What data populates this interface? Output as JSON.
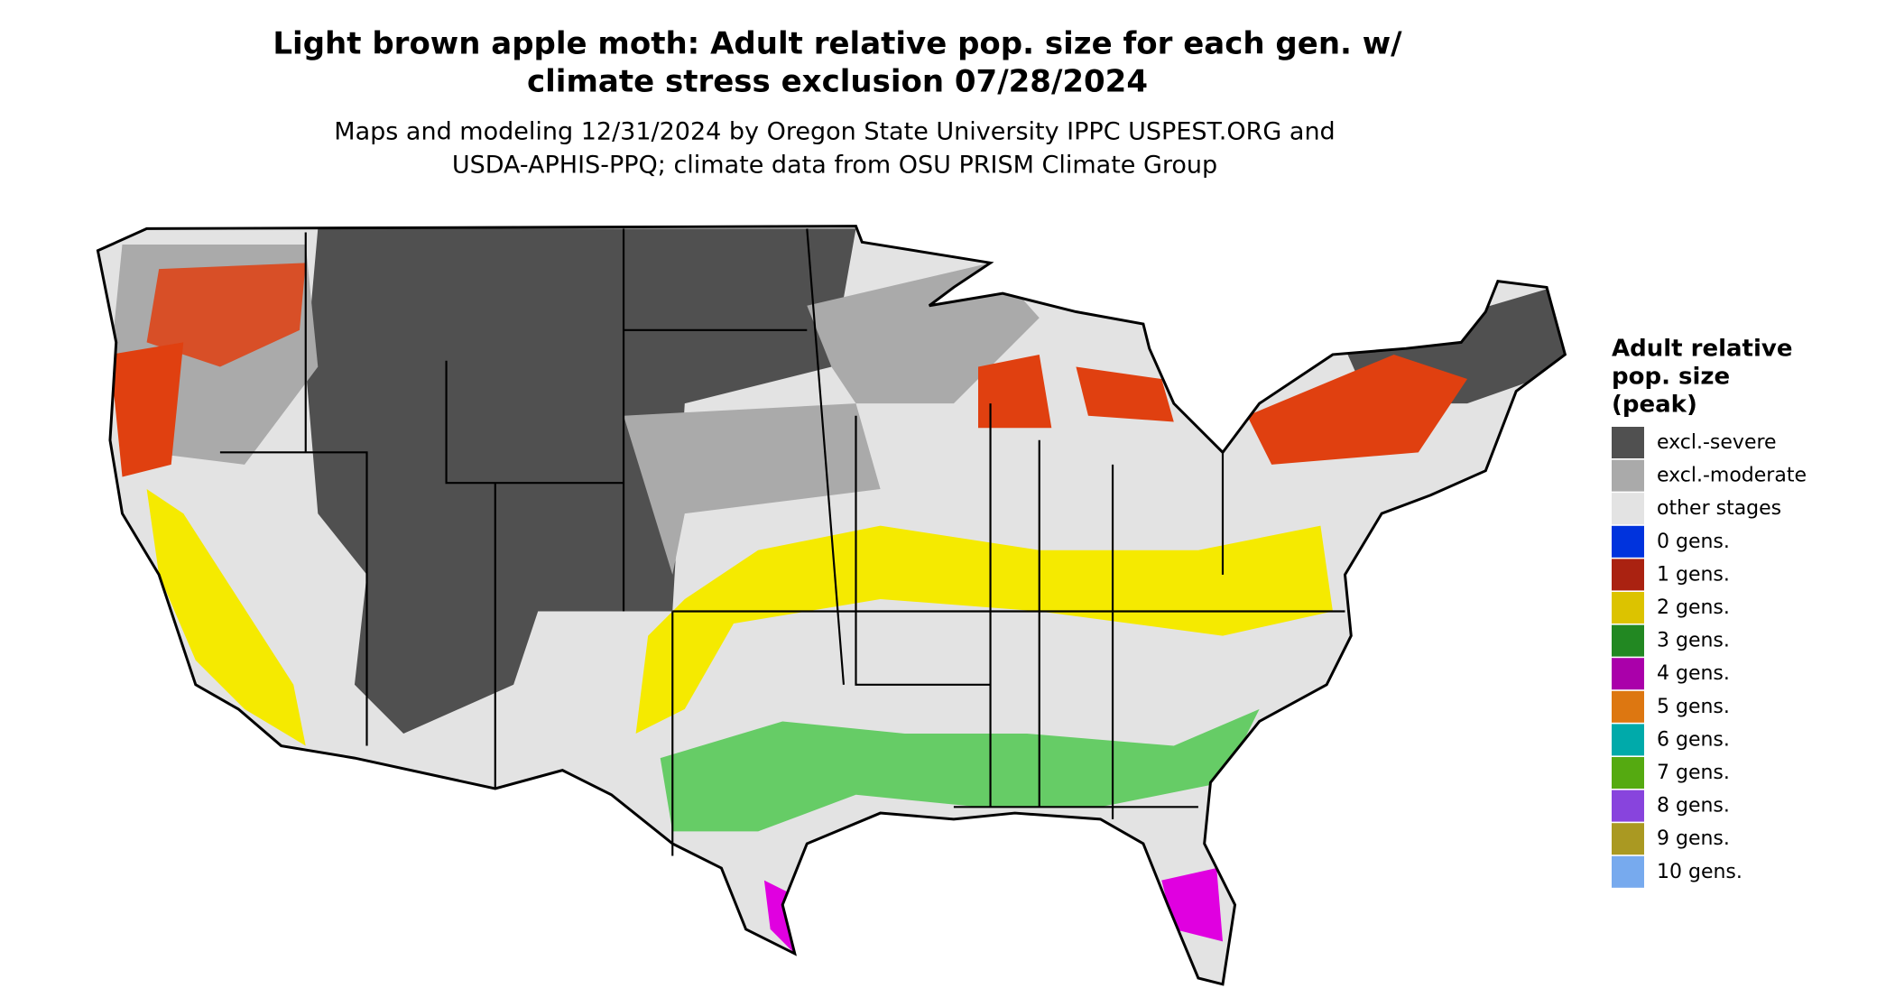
{
  "header": {
    "title": [
      "Light brown apple moth: Adult relative pop. size for each gen. w/",
      "climate stress exclusion 07/28/2024"
    ],
    "subtitle": [
      "Maps and modeling 12/31/2024 by Oregon State University IPPC USPEST.ORG and",
      "USDA-APHIS-PPQ; climate data from OSU PRISM Climate Group"
    ]
  },
  "legend": {
    "title": [
      "Adult relative",
      "pop. size",
      "(peak)"
    ],
    "items": [
      {
        "label": "excl.-severe",
        "color": "#505050"
      },
      {
        "label": "excl.-moderate",
        "color": "#aaaaaa"
      },
      {
        "label": "other stages",
        "color": "#e3e3e3"
      },
      {
        "label": "0 gens.",
        "color": "#0033dd"
      },
      {
        "label": "1 gens.",
        "color": "#aa2211"
      },
      {
        "label": "2 gens.",
        "color": "#dcc300"
      },
      {
        "label": "3 gens.",
        "color": "#228822"
      },
      {
        "label": "4 gens.",
        "color": "#aa00aa"
      },
      {
        "label": "5 gens.",
        "color": "#dd7711"
      },
      {
        "label": "6 gens.",
        "color": "#00aaaa"
      },
      {
        "label": "7 gens.",
        "color": "#55aa11"
      },
      {
        "label": "8 gens.",
        "color": "#8844dd"
      },
      {
        "label": "9 gens.",
        "color": "#aa9922"
      },
      {
        "label": "10 gens.",
        "color": "#77aaee"
      }
    ]
  }
}
